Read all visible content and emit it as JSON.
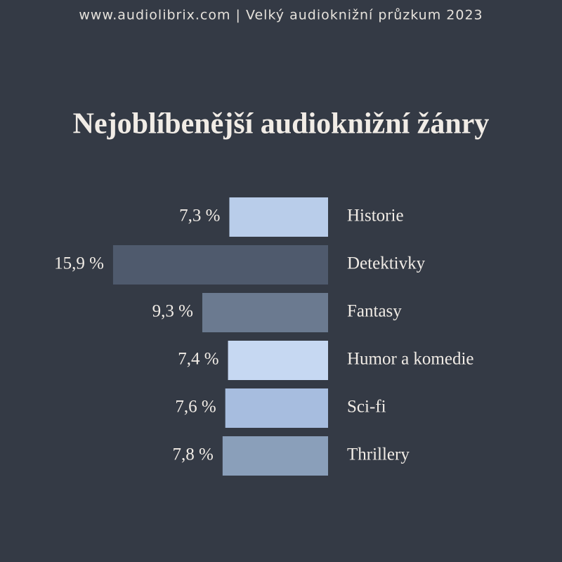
{
  "chart_data": {
    "type": "bar",
    "orientation": "horizontal",
    "subtitle": "www.audiolibrix.com | Velký audioknižní průzkum 2023",
    "title": "Nejoblíbenější audioknižní žánry",
    "categories": [
      "Historie",
      "Detektivky",
      "Fantasy",
      "Humor a komedie",
      "Sci-fi",
      "Thrillery"
    ],
    "values": [
      7.3,
      15.9,
      9.3,
      7.4,
      7.6,
      7.8
    ],
    "value_labels": [
      "7,3 %",
      "15,9 %",
      "9,3 %",
      "7,4 %",
      "7,6 %",
      "7,8 %"
    ],
    "colors": [
      "#b9cdea",
      "#4f5a6d",
      "#6b7a90",
      "#c6d8f2",
      "#a7bddf",
      "#8a9fba"
    ]
  }
}
